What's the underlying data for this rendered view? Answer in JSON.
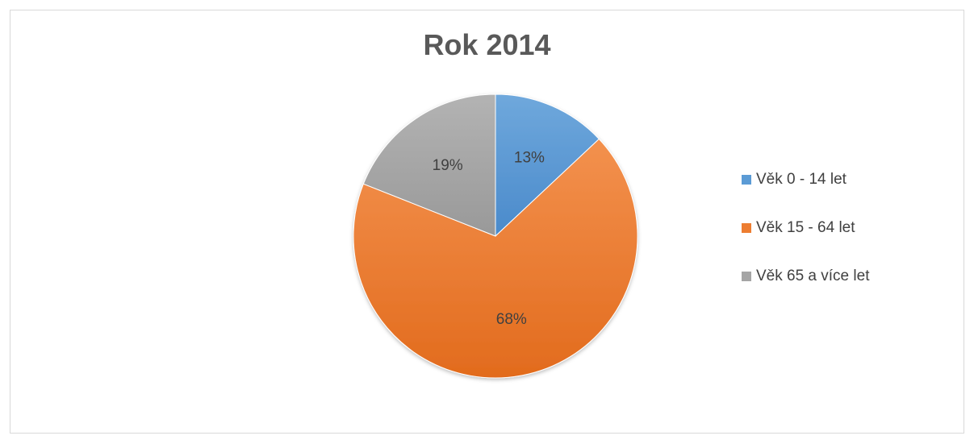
{
  "chart_data": {
    "type": "pie",
    "title": "Rok 2014",
    "categories": [
      "Věk 0 - 14 let",
      "Věk 15 - 64 let",
      "Věk 65 a více let"
    ],
    "values": [
      13,
      68,
      19
    ],
    "value_labels": [
      "13%",
      "68%",
      "19%"
    ],
    "colors": [
      "#5b9bd5",
      "#ed7d31",
      "#a5a5a5"
    ],
    "start_angle_deg": 0,
    "direction": "clockwise",
    "legend_position": "right"
  }
}
